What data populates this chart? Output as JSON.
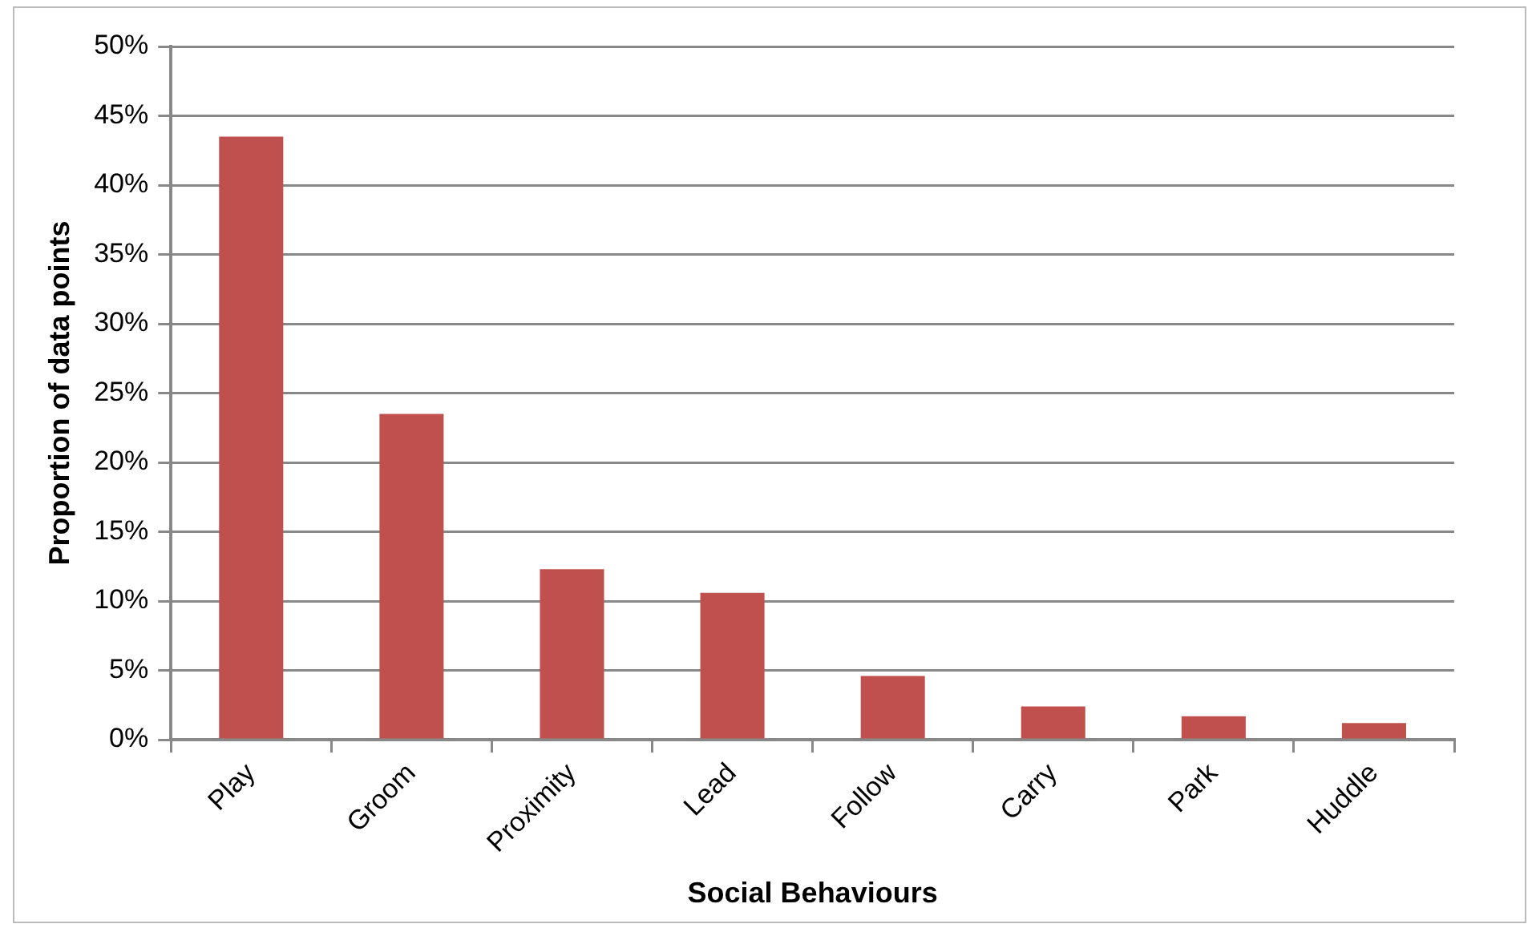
{
  "chart_data": {
    "type": "bar",
    "xlabel": "Social Behaviours",
    "ylabel": "Proportion of data points",
    "categories": [
      "Play",
      "Groom",
      "Proximity",
      "Lead",
      "Follow",
      "Carry",
      "Park",
      "Huddle"
    ],
    "values": [
      43.5,
      23.5,
      12.3,
      10.6,
      4.6,
      2.4,
      1.7,
      1.2
    ],
    "color": "#c0504d",
    "ylim": [
      0,
      50
    ],
    "yticks": [
      {
        "value": 0,
        "label": "0%"
      },
      {
        "value": 5,
        "label": "5%"
      },
      {
        "value": 10,
        "label": "10%"
      },
      {
        "value": 15,
        "label": "15%"
      },
      {
        "value": 20,
        "label": "20%"
      },
      {
        "value": 25,
        "label": "25%"
      },
      {
        "value": 30,
        "label": "30%"
      },
      {
        "value": 35,
        "label": "35%"
      },
      {
        "value": 40,
        "label": "40%"
      },
      {
        "value": 45,
        "label": "45%"
      },
      {
        "value": 50,
        "label": "50%"
      }
    ],
    "grid": "y",
    "legend": false
  }
}
